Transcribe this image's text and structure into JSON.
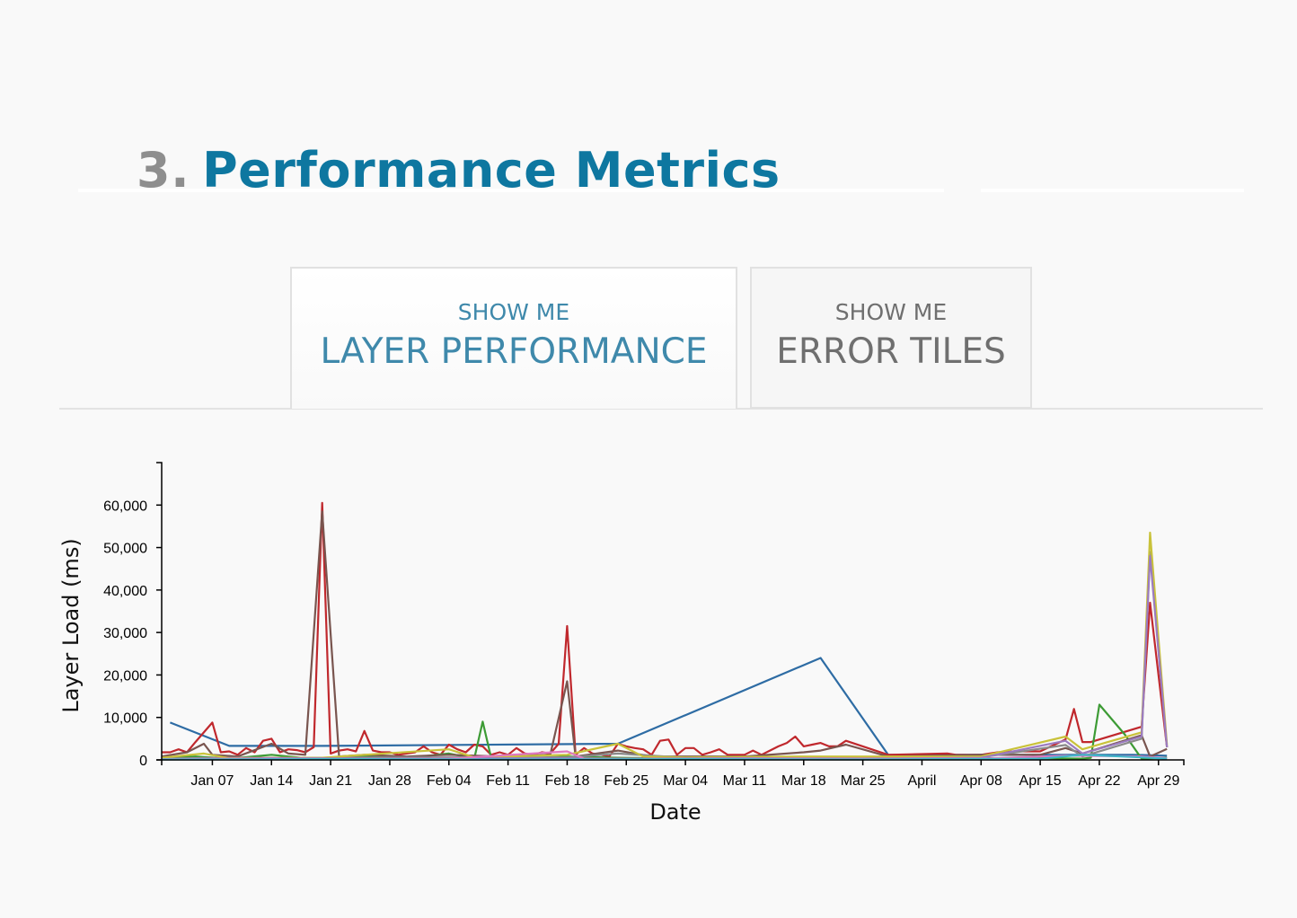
{
  "header": {
    "number": "3.",
    "title": "Performance Metrics"
  },
  "tabs": [
    {
      "small": "SHOW ME",
      "big": "LAYER PERFORMANCE",
      "active": true
    },
    {
      "small": "SHOW ME",
      "big": "ERROR TILES",
      "active": false
    }
  ],
  "chart_data": {
    "type": "line",
    "title": "",
    "xlabel": "Date",
    "ylabel": "Layer Load (ms)",
    "ylim": [
      0,
      70000
    ],
    "yticks": [
      0,
      10000,
      20000,
      30000,
      40000,
      50000,
      60000
    ],
    "xlim": [
      "2019-01-01",
      "2019-05-02"
    ],
    "xticks": [
      {
        "date": "2019-01-07",
        "label": "Jan 07"
      },
      {
        "date": "2019-01-14",
        "label": "Jan 14"
      },
      {
        "date": "2019-01-21",
        "label": "Jan 21"
      },
      {
        "date": "2019-01-28",
        "label": "Jan 28"
      },
      {
        "date": "2019-02-04",
        "label": "Feb 04"
      },
      {
        "date": "2019-02-11",
        "label": "Feb 11"
      },
      {
        "date": "2019-02-18",
        "label": "Feb 18"
      },
      {
        "date": "2019-02-25",
        "label": "Feb 25"
      },
      {
        "date": "2019-03-04",
        "label": "Mar 04"
      },
      {
        "date": "2019-03-11",
        "label": "Mar 11"
      },
      {
        "date": "2019-03-18",
        "label": "Mar 18"
      },
      {
        "date": "2019-03-25",
        "label": "Mar 25"
      },
      {
        "date": "2019-04-01",
        "label": "April"
      },
      {
        "date": "2019-04-08",
        "label": "Apr 08"
      },
      {
        "date": "2019-04-15",
        "label": "Apr 15"
      },
      {
        "date": "2019-04-22",
        "label": "Apr 22"
      },
      {
        "date": "2019-04-29",
        "label": "Apr 29"
      }
    ],
    "grid": false,
    "legend": "none",
    "series": [
      {
        "color": "#2e6ca4",
        "points": [
          [
            "2019-01-02",
            8800
          ],
          [
            "2019-01-09",
            3300
          ],
          [
            "2019-01-20",
            3300
          ],
          [
            "2019-02-24",
            3800
          ],
          [
            "2019-03-20",
            24000
          ],
          [
            "2019-03-28",
            1200
          ],
          [
            "2019-04-26",
            1200
          ],
          [
            "2019-04-30",
            1000
          ]
        ]
      },
      {
        "color": "#c0282d",
        "points": [
          [
            "2019-01-01",
            1800
          ],
          [
            "2019-01-02",
            1800
          ],
          [
            "2019-01-03",
            2500
          ],
          [
            "2019-01-04",
            1800
          ],
          [
            "2019-01-05",
            4200
          ],
          [
            "2019-01-07",
            8800
          ],
          [
            "2019-01-08",
            1800
          ],
          [
            "2019-01-09",
            2000
          ],
          [
            "2019-01-10",
            1200
          ],
          [
            "2019-01-11",
            2800
          ],
          [
            "2019-01-12",
            1800
          ],
          [
            "2019-01-13",
            4500
          ],
          [
            "2019-01-14",
            5000
          ],
          [
            "2019-01-15",
            1800
          ],
          [
            "2019-01-16",
            2500
          ],
          [
            "2019-01-17",
            2300
          ],
          [
            "2019-01-18",
            1800
          ],
          [
            "2019-01-19",
            3000
          ],
          [
            "2019-01-20",
            60500
          ],
          [
            "2019-01-21",
            1500
          ],
          [
            "2019-01-22",
            2200
          ],
          [
            "2019-01-23",
            2500
          ],
          [
            "2019-01-24",
            2000
          ],
          [
            "2019-01-25",
            6800
          ],
          [
            "2019-01-26",
            2200
          ],
          [
            "2019-01-27",
            1800
          ],
          [
            "2019-01-28",
            1800
          ],
          [
            "2019-01-29",
            1200
          ],
          [
            "2019-01-30",
            1500
          ],
          [
            "2019-01-31",
            1800
          ],
          [
            "2019-02-01",
            3200
          ],
          [
            "2019-02-02",
            1800
          ],
          [
            "2019-02-03",
            1200
          ],
          [
            "2019-02-04",
            3600
          ],
          [
            "2019-02-05",
            2500
          ],
          [
            "2019-02-06",
            1800
          ],
          [
            "2019-02-07",
            3600
          ],
          [
            "2019-02-08",
            3200
          ],
          [
            "2019-02-09",
            1200
          ],
          [
            "2019-02-10",
            1800
          ],
          [
            "2019-02-11",
            1200
          ],
          [
            "2019-02-12",
            2800
          ],
          [
            "2019-02-13",
            1500
          ],
          [
            "2019-02-14",
            1200
          ],
          [
            "2019-02-15",
            1800
          ],
          [
            "2019-02-16",
            1500
          ],
          [
            "2019-02-17",
            3800
          ],
          [
            "2019-02-18",
            31500
          ],
          [
            "2019-02-19",
            1200
          ],
          [
            "2019-02-20",
            2800
          ],
          [
            "2019-02-21",
            1500
          ],
          [
            "2019-02-22",
            1200
          ],
          [
            "2019-02-23",
            800
          ],
          [
            "2019-02-24",
            3800
          ],
          [
            "2019-02-25",
            3200
          ],
          [
            "2019-02-26",
            2800
          ],
          [
            "2019-02-27",
            2500
          ],
          [
            "2019-02-28",
            1200
          ],
          [
            "2019-03-01",
            4500
          ],
          [
            "2019-03-02",
            4800
          ],
          [
            "2019-03-03",
            1200
          ],
          [
            "2019-03-04",
            2800
          ],
          [
            "2019-03-05",
            2800
          ],
          [
            "2019-03-06",
            1200
          ],
          [
            "2019-03-07",
            1800
          ],
          [
            "2019-03-08",
            2500
          ],
          [
            "2019-03-09",
            1200
          ],
          [
            "2019-03-10",
            1200
          ],
          [
            "2019-03-11",
            1200
          ],
          [
            "2019-03-12",
            2200
          ],
          [
            "2019-03-13",
            1200
          ],
          [
            "2019-03-14",
            2200
          ],
          [
            "2019-03-15",
            3200
          ],
          [
            "2019-03-16",
            4000
          ],
          [
            "2019-03-17",
            5500
          ],
          [
            "2019-03-18",
            3200
          ],
          [
            "2019-03-19",
            3600
          ],
          [
            "2019-03-20",
            4000
          ],
          [
            "2019-03-21",
            3200
          ],
          [
            "2019-03-22",
            3200
          ],
          [
            "2019-03-23",
            4500
          ],
          [
            "2019-03-28",
            1200
          ],
          [
            "2019-04-04",
            1500
          ],
          [
            "2019-04-05",
            1200
          ],
          [
            "2019-04-08",
            1200
          ],
          [
            "2019-04-10",
            1800
          ],
          [
            "2019-04-12",
            2000
          ],
          [
            "2019-04-15",
            2000
          ],
          [
            "2019-04-18",
            4800
          ],
          [
            "2019-04-19",
            12000
          ],
          [
            "2019-04-20",
            4200
          ],
          [
            "2019-04-21",
            4200
          ],
          [
            "2019-04-27",
            7800
          ],
          [
            "2019-04-28",
            37000
          ],
          [
            "2019-04-30",
            3000
          ]
        ]
      },
      {
        "color": "#3d9b35",
        "points": [
          [
            "2019-01-01",
            500
          ],
          [
            "2019-01-05",
            800
          ],
          [
            "2019-01-09",
            300
          ],
          [
            "2019-01-14",
            1200
          ],
          [
            "2019-01-18",
            400
          ],
          [
            "2019-01-20",
            400
          ],
          [
            "2019-01-25",
            800
          ],
          [
            "2019-01-30",
            400
          ],
          [
            "2019-02-04",
            1500
          ],
          [
            "2019-02-07",
            300
          ],
          [
            "2019-02-08",
            9000
          ],
          [
            "2019-02-09",
            500
          ],
          [
            "2019-02-14",
            400
          ],
          [
            "2019-02-18",
            800
          ],
          [
            "2019-02-24",
            500
          ],
          [
            "2019-03-04",
            300
          ],
          [
            "2019-03-11",
            400
          ],
          [
            "2019-03-18",
            500
          ],
          [
            "2019-03-25",
            300
          ],
          [
            "2019-04-08",
            400
          ],
          [
            "2019-04-15",
            400
          ],
          [
            "2019-04-20",
            300
          ],
          [
            "2019-04-21",
            500
          ],
          [
            "2019-04-22",
            13000
          ],
          [
            "2019-04-25",
            6000
          ],
          [
            "2019-04-27",
            300
          ],
          [
            "2019-04-30",
            500
          ]
        ]
      },
      {
        "color": "#79554f",
        "points": [
          [
            "2019-01-01",
            800
          ],
          [
            "2019-01-04",
            1800
          ],
          [
            "2019-01-06",
            3800
          ],
          [
            "2019-01-07",
            1200
          ],
          [
            "2019-01-10",
            800
          ],
          [
            "2019-01-14",
            3800
          ],
          [
            "2019-01-16",
            1500
          ],
          [
            "2019-01-18",
            1200
          ],
          [
            "2019-01-20",
            58500
          ],
          [
            "2019-01-22",
            800
          ],
          [
            "2019-01-25",
            1200
          ],
          [
            "2019-01-30",
            800
          ],
          [
            "2019-02-04",
            1200
          ],
          [
            "2019-02-10",
            800
          ],
          [
            "2019-02-16",
            1200
          ],
          [
            "2019-02-18",
            18500
          ],
          [
            "2019-02-19",
            800
          ],
          [
            "2019-02-24",
            2200
          ],
          [
            "2019-02-28",
            800
          ],
          [
            "2019-03-11",
            800
          ],
          [
            "2019-03-18",
            1800
          ],
          [
            "2019-03-20",
            2200
          ],
          [
            "2019-03-23",
            3600
          ],
          [
            "2019-03-28",
            800
          ],
          [
            "2019-04-08",
            1200
          ],
          [
            "2019-04-15",
            1200
          ],
          [
            "2019-04-18",
            2800
          ],
          [
            "2019-04-20",
            1500
          ],
          [
            "2019-04-27",
            5800
          ],
          [
            "2019-04-28",
            800
          ],
          [
            "2019-04-30",
            2600
          ]
        ]
      },
      {
        "color": "#8a8a8a",
        "points": [
          [
            "2019-01-01",
            300
          ],
          [
            "2019-01-09",
            500
          ],
          [
            "2019-01-20",
            500
          ],
          [
            "2019-02-04",
            600
          ],
          [
            "2019-02-18",
            600
          ],
          [
            "2019-02-24",
            1500
          ],
          [
            "2019-03-04",
            500
          ],
          [
            "2019-03-18",
            600
          ],
          [
            "2019-04-08",
            600
          ],
          [
            "2019-04-18",
            3500
          ],
          [
            "2019-04-20",
            800
          ],
          [
            "2019-04-27",
            5000
          ],
          [
            "2019-04-28",
            49000
          ],
          [
            "2019-04-30",
            3000
          ]
        ]
      },
      {
        "color": "#c9c23a",
        "points": [
          [
            "2019-01-01",
            500
          ],
          [
            "2019-01-06",
            1500
          ],
          [
            "2019-01-09",
            400
          ],
          [
            "2019-01-20",
            500
          ],
          [
            "2019-01-25",
            1200
          ],
          [
            "2019-02-04",
            2500
          ],
          [
            "2019-02-07",
            600
          ],
          [
            "2019-02-18",
            1200
          ],
          [
            "2019-02-24",
            3800
          ],
          [
            "2019-02-27",
            800
          ],
          [
            "2019-03-04",
            600
          ],
          [
            "2019-03-18",
            800
          ],
          [
            "2019-04-08",
            800
          ],
          [
            "2019-04-18",
            5500
          ],
          [
            "2019-04-20",
            2500
          ],
          [
            "2019-04-27",
            6500
          ],
          [
            "2019-04-28",
            53500
          ],
          [
            "2019-04-30",
            3600
          ]
        ]
      },
      {
        "color": "#9b7bc0",
        "points": [
          [
            "2019-01-01",
            200
          ],
          [
            "2019-01-14",
            400
          ],
          [
            "2019-01-28",
            300
          ],
          [
            "2019-02-11",
            400
          ],
          [
            "2019-02-25",
            300
          ],
          [
            "2019-03-11",
            400
          ],
          [
            "2019-03-25",
            300
          ],
          [
            "2019-04-08",
            500
          ],
          [
            "2019-04-18",
            4500
          ],
          [
            "2019-04-20",
            1500
          ],
          [
            "2019-04-27",
            5500
          ],
          [
            "2019-04-28",
            48000
          ],
          [
            "2019-04-30",
            3000
          ]
        ]
      },
      {
        "color": "#e07ac0",
        "points": [
          [
            "2019-01-01",
            200
          ],
          [
            "2019-01-10",
            300
          ],
          [
            "2019-01-21",
            200
          ],
          [
            "2019-02-04",
            300
          ],
          [
            "2019-02-18",
            2000
          ],
          [
            "2019-02-20",
            300
          ],
          [
            "2019-03-04",
            200
          ],
          [
            "2019-03-18",
            300
          ],
          [
            "2019-04-08",
            300
          ],
          [
            "2019-04-18",
            1000
          ],
          [
            "2019-04-27",
            800
          ],
          [
            "2019-04-30",
            400
          ]
        ]
      },
      {
        "color": "#3fb7c9",
        "points": [
          [
            "2019-01-01",
            100
          ],
          [
            "2019-01-21",
            200
          ],
          [
            "2019-02-11",
            100
          ],
          [
            "2019-03-04",
            200
          ],
          [
            "2019-03-25",
            100
          ],
          [
            "2019-04-15",
            300
          ],
          [
            "2019-04-20",
            1200
          ],
          [
            "2019-04-27",
            600
          ],
          [
            "2019-04-30",
            300
          ]
        ]
      }
    ]
  }
}
